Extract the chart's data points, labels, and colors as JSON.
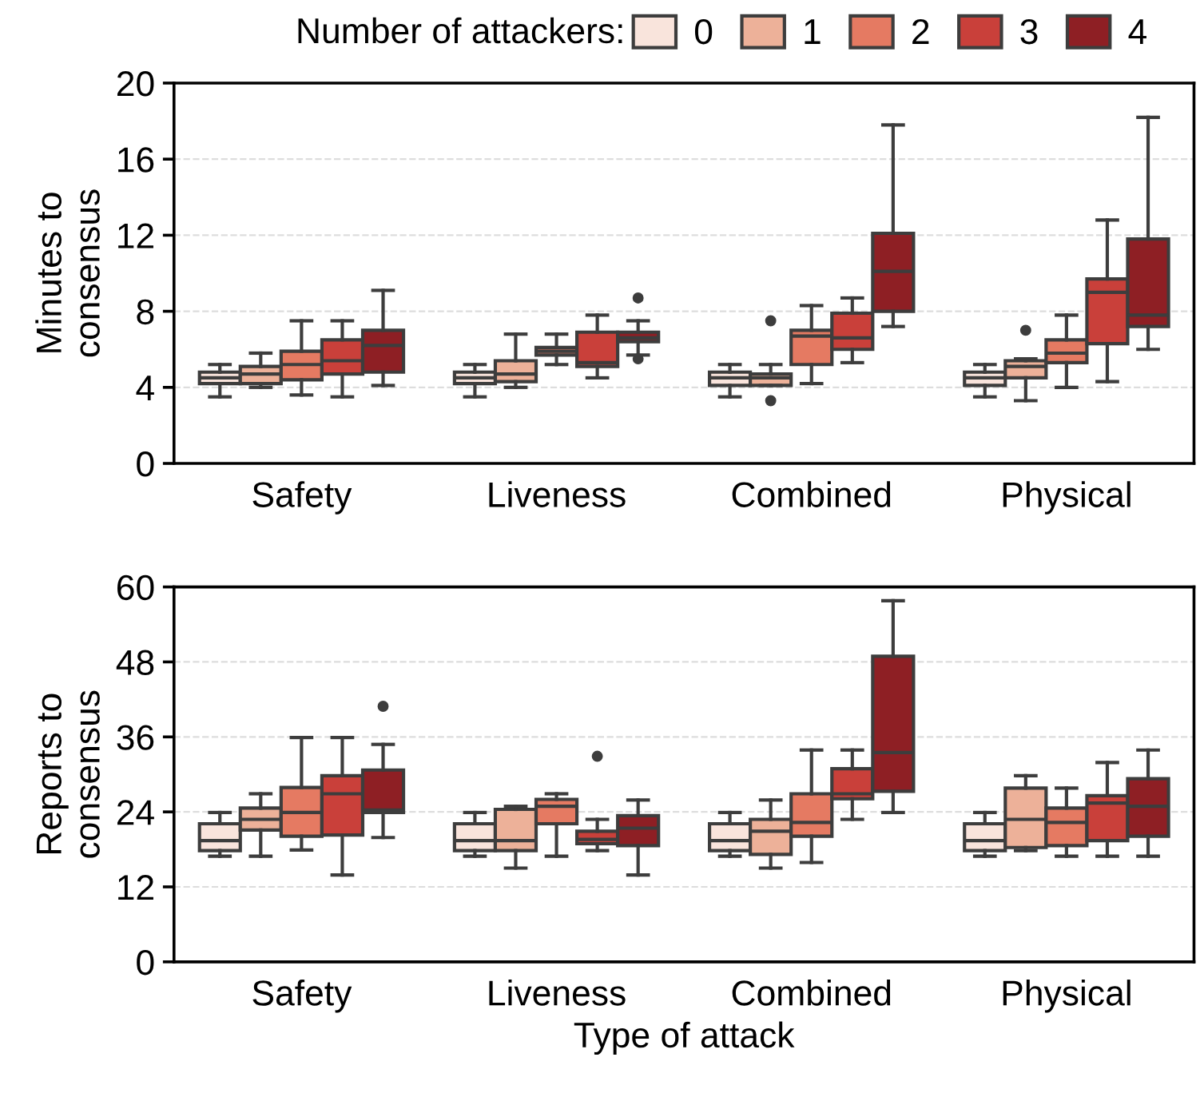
{
  "chart_data": [
    {
      "type": "box",
      "categories": [
        "Safety",
        "Liveness",
        "Combined",
        "Physical"
      ],
      "ylabel": "Minutes to\nconsensus",
      "ylim": [
        0,
        20
      ],
      "yticks": [
        0,
        4,
        8,
        12,
        16,
        20
      ],
      "grid": "y",
      "legend": "top",
      "legend_title": "Number of attackers:",
      "series": [
        {
          "name": "0",
          "color": "#f9e4dc",
          "boxes": [
            {
              "low": 3.5,
              "q1": 4.2,
              "median": 4.5,
              "q3": 4.8,
              "high": 5.2
            },
            {
              "low": 3.5,
              "q1": 4.2,
              "median": 4.5,
              "q3": 4.8,
              "high": 5.2
            },
            {
              "low": 3.5,
              "q1": 4.1,
              "median": 4.5,
              "q3": 4.8,
              "high": 5.2
            },
            {
              "low": 3.5,
              "q1": 4.1,
              "median": 4.5,
              "q3": 4.8,
              "high": 5.2
            }
          ]
        },
        {
          "name": "1",
          "color": "#edb199",
          "boxes": [
            {
              "low": 4.0,
              "q1": 4.2,
              "median": 4.7,
              "q3": 5.1,
              "high": 5.8
            },
            {
              "low": 4.0,
              "q1": 4.3,
              "median": 4.7,
              "q3": 5.4,
              "high": 6.8
            },
            {
              "low": 4.1,
              "q1": 4.1,
              "median": 4.5,
              "q3": 4.7,
              "high": 5.2,
              "outliers": [
                7.5,
                3.3
              ]
            },
            {
              "low": 3.3,
              "q1": 4.5,
              "median": 5.1,
              "q3": 5.4,
              "high": 5.5,
              "outliers": [
                7.0
              ]
            }
          ]
        },
        {
          "name": "2",
          "color": "#e57a62",
          "boxes": [
            {
              "low": 3.6,
              "q1": 4.4,
              "median": 5.2,
              "q3": 5.9,
              "high": 7.5
            },
            {
              "low": 5.2,
              "q1": 5.7,
              "median": 5.9,
              "q3": 6.1,
              "high": 6.8
            },
            {
              "low": 4.2,
              "q1": 5.2,
              "median": 6.7,
              "q3": 7.0,
              "high": 8.3
            },
            {
              "low": 4.0,
              "q1": 5.3,
              "median": 5.8,
              "q3": 6.5,
              "high": 7.8
            }
          ]
        },
        {
          "name": "3",
          "color": "#c9403a",
          "boxes": [
            {
              "low": 3.5,
              "q1": 4.7,
              "median": 5.4,
              "q3": 6.5,
              "high": 7.5
            },
            {
              "low": 4.5,
              "q1": 5.1,
              "median": 5.3,
              "q3": 6.9,
              "high": 7.8
            },
            {
              "low": 5.3,
              "q1": 6.0,
              "median": 6.6,
              "q3": 7.9,
              "high": 8.7
            },
            {
              "low": 4.3,
              "q1": 6.3,
              "median": 9.0,
              "q3": 9.7,
              "high": 12.8
            }
          ]
        },
        {
          "name": "4",
          "color": "#8e1f24",
          "boxes": [
            {
              "low": 4.1,
              "q1": 4.8,
              "median": 6.2,
              "q3": 7.0,
              "high": 9.1
            },
            {
              "low": 5.7,
              "q1": 6.4,
              "median": 6.6,
              "q3": 6.9,
              "high": 7.5,
              "outliers": [
                8.7,
                5.5
              ]
            },
            {
              "low": 7.2,
              "q1": 8.0,
              "median": 10.1,
              "q3": 12.1,
              "high": 17.8
            },
            {
              "low": 6.0,
              "q1": 7.2,
              "median": 7.8,
              "q3": 11.8,
              "high": 18.2
            }
          ]
        }
      ]
    },
    {
      "type": "box",
      "categories": [
        "Safety",
        "Liveness",
        "Combined",
        "Physical"
      ],
      "xlabel": "Type of attack",
      "ylabel": "Reports to\nconsensus",
      "ylim": [
        0,
        60
      ],
      "yticks": [
        0,
        12,
        24,
        36,
        48,
        60
      ],
      "grid": "y",
      "series": [
        {
          "color": "#f9e4dc",
          "boxes": [
            {
              "low": 16.9,
              "q1": 17.8,
              "median": 19.4,
              "q3": 22.1,
              "high": 23.9
            },
            {
              "low": 16.9,
              "q1": 17.8,
              "median": 19.4,
              "q3": 22.1,
              "high": 23.9
            },
            {
              "low": 16.9,
              "q1": 17.8,
              "median": 19.4,
              "q3": 22.1,
              "high": 23.9
            },
            {
              "low": 16.9,
              "q1": 17.8,
              "median": 19.4,
              "q3": 22.1,
              "high": 23.9
            }
          ]
        },
        {
          "color": "#edb199",
          "boxes": [
            {
              "low": 16.9,
              "q1": 21.1,
              "median": 22.8,
              "q3": 24.6,
              "high": 26.9
            },
            {
              "low": 15.0,
              "q1": 17.8,
              "median": 19.4,
              "q3": 24.4,
              "high": 24.9
            },
            {
              "low": 15.0,
              "q1": 17.2,
              "median": 20.9,
              "q3": 22.8,
              "high": 25.9
            },
            {
              "low": 17.8,
              "q1": 18.3,
              "median": 22.8,
              "q3": 27.8,
              "high": 29.8
            }
          ]
        },
        {
          "color": "#e57a62",
          "boxes": [
            {
              "low": 17.9,
              "q1": 20.1,
              "median": 23.9,
              "q3": 27.9,
              "high": 35.9
            },
            {
              "low": 16.9,
              "q1": 22.1,
              "median": 24.9,
              "q3": 26.0,
              "high": 26.9
            },
            {
              "low": 15.9,
              "q1": 20.1,
              "median": 22.3,
              "q3": 26.9,
              "high": 33.9
            },
            {
              "low": 16.9,
              "q1": 18.6,
              "median": 22.3,
              "q3": 24.6,
              "high": 27.8
            }
          ]
        },
        {
          "color": "#c9403a",
          "boxes": [
            {
              "low": 13.9,
              "q1": 20.3,
              "median": 26.9,
              "q3": 29.8,
              "high": 35.9
            },
            {
              "low": 17.8,
              "q1": 18.9,
              "median": 19.6,
              "q3": 20.9,
              "high": 22.8,
              "outliers": [
                32.9
              ]
            },
            {
              "low": 22.8,
              "q1": 26.1,
              "median": 26.9,
              "q3": 30.9,
              "high": 33.9
            },
            {
              "low": 16.9,
              "q1": 19.4,
              "median": 25.4,
              "q3": 26.6,
              "high": 31.9
            }
          ]
        },
        {
          "color": "#8e1f24",
          "boxes": [
            {
              "low": 19.9,
              "q1": 23.9,
              "median": 24.3,
              "q3": 30.7,
              "high": 34.8,
              "outliers": [
                40.9
              ]
            },
            {
              "low": 13.9,
              "q1": 18.6,
              "median": 21.4,
              "q3": 23.4,
              "high": 25.9
            },
            {
              "low": 23.9,
              "q1": 27.3,
              "median": 33.5,
              "q3": 48.9,
              "high": 57.8
            },
            {
              "low": 16.9,
              "q1": 20.1,
              "median": 24.9,
              "q3": 29.3,
              "high": 33.9
            }
          ]
        }
      ]
    }
  ]
}
